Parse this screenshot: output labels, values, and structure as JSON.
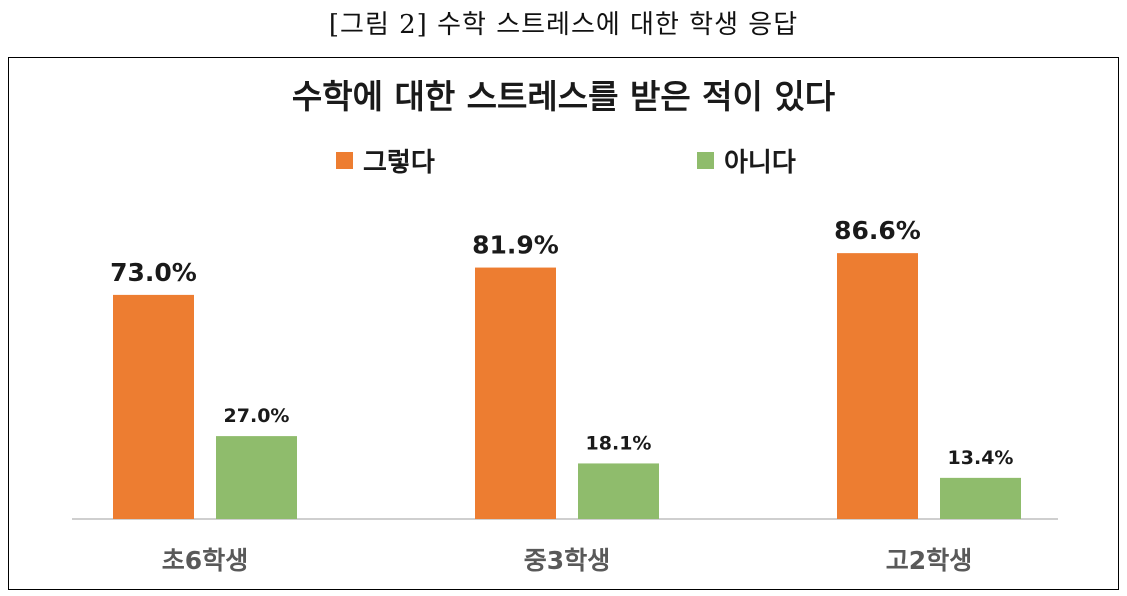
{
  "figure_caption": "[그림 2] 수학 스트레스에 대한 학생 응답",
  "chart_data": {
    "type": "bar",
    "title": "수학에 대한 스트레스를 받은 적이 있다",
    "categories": [
      "초6학생",
      "중3학생",
      "고2학생"
    ],
    "series": [
      {
        "name": "그렇다",
        "values": [
          73.0,
          81.9,
          86.6
        ],
        "labels": [
          "73.0%",
          "81.9%",
          "86.6%"
        ],
        "color": "#ED7D31"
      },
      {
        "name": "아니다",
        "values": [
          27.0,
          18.1,
          13.4
        ],
        "labels": [
          "27.0%",
          "18.1%",
          "13.4%"
        ],
        "color": "#8FBC6C"
      }
    ],
    "xlabel": "",
    "ylabel": "",
    "ylim": [
      0,
      100
    ],
    "grid": false,
    "legend_position": "top"
  }
}
